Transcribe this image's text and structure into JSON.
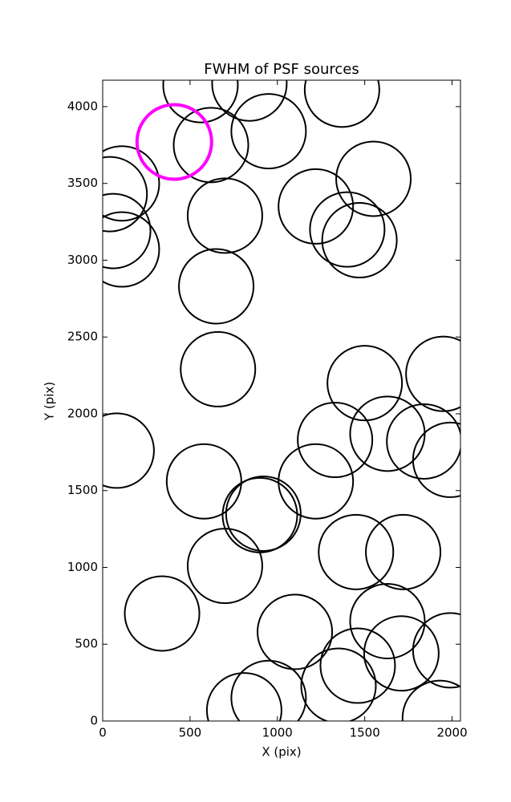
{
  "chart_data": {
    "type": "scatter",
    "title": "FWHM of PSF sources",
    "xlabel": "X (pix)",
    "ylabel": "Y (pix)",
    "xlim": [
      0,
      2048
    ],
    "ylim": [
      0,
      4172
    ],
    "xticks": [
      0,
      500,
      1000,
      1500,
      2000
    ],
    "yticks": [
      0,
      500,
      1000,
      1500,
      2000,
      2500,
      3000,
      3500,
      4000
    ],
    "series": [
      {
        "color": "#000000",
        "linewidth": 2,
        "x": [
          560,
          840,
          1370,
          950,
          620,
          110,
          40,
          1550,
          1220,
          700,
          60,
          110,
          1400,
          1470,
          650,
          660,
          1500,
          1950,
          80,
          1330,
          1630,
          1840,
          1990,
          580,
          1220,
          920,
          900,
          1450,
          1720,
          700,
          340,
          1100,
          1630,
          1710,
          1990,
          1460,
          1350,
          950,
          810,
          1930
        ],
        "y": [
          4140,
          4150,
          4110,
          3840,
          3750,
          3500,
          3430,
          3530,
          3350,
          3290,
          3190,
          3070,
          3200,
          3130,
          2830,
          2290,
          2200,
          2260,
          1760,
          1830,
          1870,
          1820,
          1700,
          1560,
          1560,
          1350,
          1340,
          1100,
          1100,
          1010,
          700,
          580,
          650,
          440,
          460,
          360,
          230,
          150,
          70,
          20
        ]
      },
      {
        "color": "#ff00ff",
        "linewidth": 4,
        "x": [
          410
        ],
        "y": [
          3770
        ]
      }
    ]
  }
}
